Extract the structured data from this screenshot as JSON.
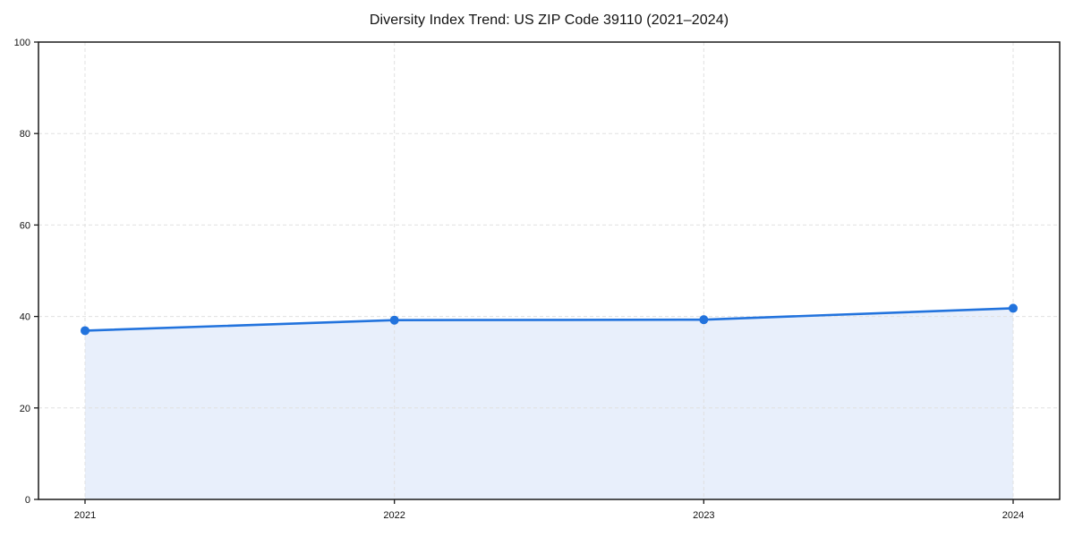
{
  "chart": {
    "title": "Diversity Index Trend: US ZIP Code 39110 (2021–2024)"
  },
  "chart_data": {
    "type": "area",
    "title": "Diversity Index Trend: US ZIP Code 39110 (2021–2024)",
    "xlabel": "",
    "ylabel": "",
    "categories": [
      "2021",
      "2022",
      "2023",
      "2024"
    ],
    "series": [
      {
        "name": "Diversity Index",
        "values": [
          36.9,
          39.2,
          39.3,
          41.8
        ]
      }
    ],
    "ylim": [
      0,
      100
    ],
    "yticks": [
      0,
      20,
      40,
      60,
      80,
      100
    ],
    "grid": "on",
    "grid_style": "dashed",
    "legend_position": "none",
    "colors": {
      "line": "#2273dd",
      "marker": "#2273dd",
      "area_fill": "#e8effb",
      "gridline": "#e0e0e0",
      "spine": "#1a1a1a",
      "tick_label": "#111111"
    }
  }
}
